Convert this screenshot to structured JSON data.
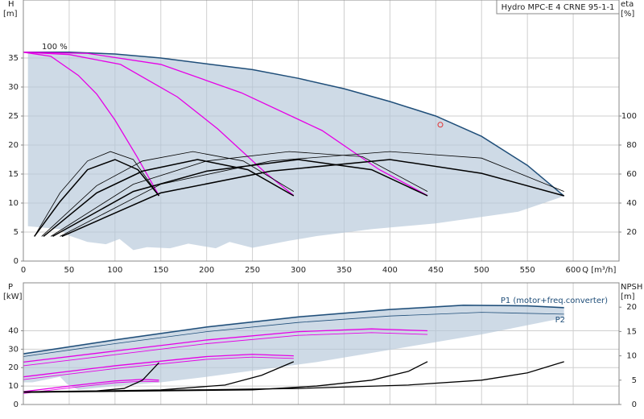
{
  "chart_data": [
    {
      "type": "line",
      "title": "Hydro MPC-E 4 CRNE 95-1-1",
      "y_label": "H",
      "y_unit": "[m]",
      "y2_label": "eta",
      "y2_unit": "[%]",
      "x_label": "Q [m³/h]",
      "annotation": "100 %",
      "xlim": [
        0,
        650
      ],
      "xticks": [
        0,
        50,
        100,
        150,
        200,
        250,
        300,
        350,
        400,
        450,
        500,
        550,
        600
      ],
      "ylim": [
        0,
        45
      ],
      "yticks": [
        0,
        5,
        10,
        15,
        20,
        25,
        30,
        35
      ],
      "y2lim": [
        0,
        180
      ],
      "y2ticks": [
        20,
        40,
        60,
        80,
        100
      ],
      "grid": true,
      "show_xtick_labels": true,
      "series": [
        {
          "kind": "area",
          "color": "#b4c6d8",
          "x": [
            5,
            50,
            100,
            150,
            200,
            250,
            300,
            350,
            400,
            450,
            500,
            550,
            590,
            540,
            450,
            380,
            320,
            290,
            250,
            225,
            210,
            180,
            160,
            135,
            120,
            105,
            90,
            70,
            48,
            40,
            5
          ],
          "values": [
            36,
            36,
            35.7,
            35,
            34,
            33,
            31.5,
            29.7,
            27.5,
            25,
            21.5,
            16.5,
            11.2,
            8.5,
            6.5,
            5.5,
            4.3,
            3.5,
            2.3,
            3.3,
            2.2,
            3.0,
            2.2,
            2.4,
            1.9,
            3.8,
            2.9,
            3.3,
            4.5,
            5.5,
            6
          ]
        },
        {
          "color": "#1f4e79",
          "line_width": 1.5,
          "x": [
            0,
            50,
            100,
            150,
            200,
            250,
            300,
            350,
            400,
            450,
            500,
            550,
            590
          ],
          "values": [
            36,
            36,
            35.7,
            35,
            34,
            33,
            31.5,
            29.7,
            27.5,
            25,
            21.5,
            16.5,
            11.2
          ]
        },
        {
          "color": "#e600e6",
          "line_width": 1.3,
          "x": [
            0,
            30,
            60,
            80,
            100,
            124,
            148
          ],
          "values": [
            36,
            35.3,
            32,
            28.8,
            24.3,
            18,
            11.3
          ]
        },
        {
          "color": "#e600e6",
          "line_width": 1.3,
          "x": [
            0,
            50,
            106,
            168,
            212,
            265,
            295
          ],
          "values": [
            36,
            35.6,
            33.9,
            28.3,
            22.8,
            15.1,
            11.3
          ]
        },
        {
          "color": "#e600e6",
          "line_width": 1.3,
          "x": [
            0,
            70,
            150,
            238,
            326,
            388,
            441
          ],
          "values": [
            36,
            35.8,
            33.9,
            29,
            22.5,
            15.8,
            11.3
          ]
        },
        {
          "color": "#000000",
          "line_width": 0.8,
          "axis": "y2",
          "x": [
            12,
            40,
            70,
            95,
            120,
            148
          ],
          "values": [
            17,
            47,
            69,
            75.5,
            70,
            45
          ]
        },
        {
          "color": "#000000",
          "line_width": 1.5,
          "axis": "y2",
          "x": [
            12,
            40,
            70,
            100,
            125,
            148
          ],
          "values": [
            17,
            41,
            63,
            70,
            63,
            45
          ]
        },
        {
          "color": "#000000",
          "line_width": 0.8,
          "axis": "y2",
          "x": [
            20,
            80,
            130,
            185,
            240,
            295
          ],
          "values": [
            17,
            52,
            69,
            75.5,
            69,
            48
          ]
        },
        {
          "color": "#000000",
          "line_width": 1.5,
          "axis": "y2",
          "x": [
            22,
            80,
            130,
            190,
            245,
            295
          ],
          "values": [
            17,
            47,
            62,
            70,
            63,
            45
          ]
        },
        {
          "color": "#000000",
          "line_width": 0.8,
          "axis": "y2",
          "x": [
            30,
            120,
            200,
            290,
            370,
            441
          ],
          "values": [
            17,
            53,
            69,
            75.5,
            72,
            48
          ]
        },
        {
          "color": "#000000",
          "line_width": 1.5,
          "axis": "y2",
          "x": [
            32,
            120,
            200,
            300,
            380,
            441
          ],
          "values": [
            17,
            48,
            62,
            70,
            63,
            45
          ]
        },
        {
          "color": "#000000",
          "line_width": 0.8,
          "axis": "y2",
          "x": [
            40,
            150,
            270,
            400,
            500,
            590
          ],
          "values": [
            17,
            53,
            69,
            75.5,
            71,
            48
          ]
        },
        {
          "color": "#000000",
          "line_width": 1.5,
          "axis": "y2",
          "x": [
            42,
            150,
            270,
            400,
            500,
            590
          ],
          "values": [
            17,
            47,
            62,
            70,
            60.5,
            45
          ]
        },
        {
          "color": "#e03030",
          "marker": "circle",
          "x": [
            455
          ],
          "values": [
            23.5
          ]
        }
      ]
    },
    {
      "type": "line",
      "y_label": "P",
      "y_unit": "[kW]",
      "y2_label": "NPSH",
      "y2_unit": "[m]",
      "xlim": [
        0,
        650
      ],
      "xticks": [
        0,
        50,
        100,
        150,
        200,
        250,
        300,
        350,
        400,
        450,
        500,
        550,
        600
      ],
      "ylim": [
        0,
        66
      ],
      "yticks": [
        0,
        10,
        20,
        30,
        40
      ],
      "y2lim": [
        0,
        25
      ],
      "y2ticks": [
        0,
        5,
        10,
        15,
        20
      ],
      "grid": true,
      "show_xtick_labels": false,
      "series": [
        {
          "kind": "area",
          "color": "#b4c6d8",
          "x": [
            0,
            100,
            200,
            300,
            400,
            480,
            550,
            590,
            590,
            500,
            440,
            380,
            320,
            260,
            200,
            150,
            100,
            60,
            48,
            40,
            10,
            0
          ],
          "values": [
            28,
            35.5,
            42.5,
            48,
            52,
            54.3,
            54,
            53,
            47,
            38,
            33,
            28,
            23,
            19,
            15,
            12,
            10,
            8,
            11,
            15,
            12,
            12
          ]
        },
        {
          "name": "P1 (motor+freq.converter)",
          "color": "#1f4e79",
          "line_width": 1.5,
          "x": [
            0,
            100,
            200,
            300,
            400,
            480,
            550,
            590
          ],
          "values": [
            27.5,
            35,
            42,
            47.5,
            51.5,
            53.8,
            53.5,
            52.5
          ]
        },
        {
          "name": "P2",
          "color": "#1f4e79",
          "line_width": 0.8,
          "x": [
            0,
            100,
            200,
            300,
            400,
            500,
            590
          ],
          "values": [
            26,
            33,
            39.5,
            44.5,
            48,
            50,
            49
          ]
        },
        {
          "color": "#e600e6",
          "line_width": 1.3,
          "x": [
            0,
            100,
            200,
            300,
            380,
            441
          ],
          "values": [
            23,
            29,
            35,
            39.5,
            41,
            40
          ]
        },
        {
          "color": "#e600e6",
          "line_width": 0.9,
          "x": [
            0,
            100,
            200,
            300,
            380,
            441
          ],
          "values": [
            21,
            27,
            33,
            37.5,
            39,
            38
          ]
        },
        {
          "color": "#e600e6",
          "line_width": 1.3,
          "x": [
            0,
            100,
            200,
            250,
            295
          ],
          "values": [
            15,
            21,
            26,
            27.2,
            26.4
          ]
        },
        {
          "color": "#e600e6",
          "line_width": 0.9,
          "x": [
            0,
            100,
            200,
            250,
            295
          ],
          "values": [
            13.5,
            19.5,
            24.5,
            25.7,
            25
          ]
        },
        {
          "color": "#e600e6",
          "line_width": 1.3,
          "x": [
            0,
            50,
            100,
            130,
            148
          ],
          "values": [
            7,
            10,
            12.8,
            13.6,
            13.2
          ]
        },
        {
          "color": "#e600e6",
          "line_width": 0.9,
          "x": [
            0,
            50,
            100,
            130,
            148
          ],
          "values": [
            6,
            9,
            11.8,
            12.6,
            12.3
          ]
        },
        {
          "color": "#000000",
          "line_width": 1.3,
          "axis": "y2",
          "x": [
            0,
            80,
            110,
            130,
            148
          ],
          "values": [
            2.6,
            2.8,
            3.3,
            5,
            8.6
          ]
        },
        {
          "color": "#000000",
          "line_width": 1.3,
          "axis": "y2",
          "x": [
            0,
            150,
            220,
            260,
            295
          ],
          "values": [
            2.5,
            3,
            4,
            6,
            8.8
          ]
        },
        {
          "color": "#000000",
          "line_width": 1.3,
          "axis": "y2",
          "x": [
            0,
            250,
            320,
            380,
            420,
            441
          ],
          "values": [
            2.5,
            3,
            3.8,
            5,
            6.8,
            8.8
          ]
        },
        {
          "color": "#000000",
          "line_width": 1.3,
          "axis": "y2",
          "x": [
            0,
            300,
            420,
            500,
            550,
            590
          ],
          "values": [
            2.5,
            3.3,
            4,
            5,
            6.5,
            8.8
          ]
        }
      ]
    }
  ]
}
